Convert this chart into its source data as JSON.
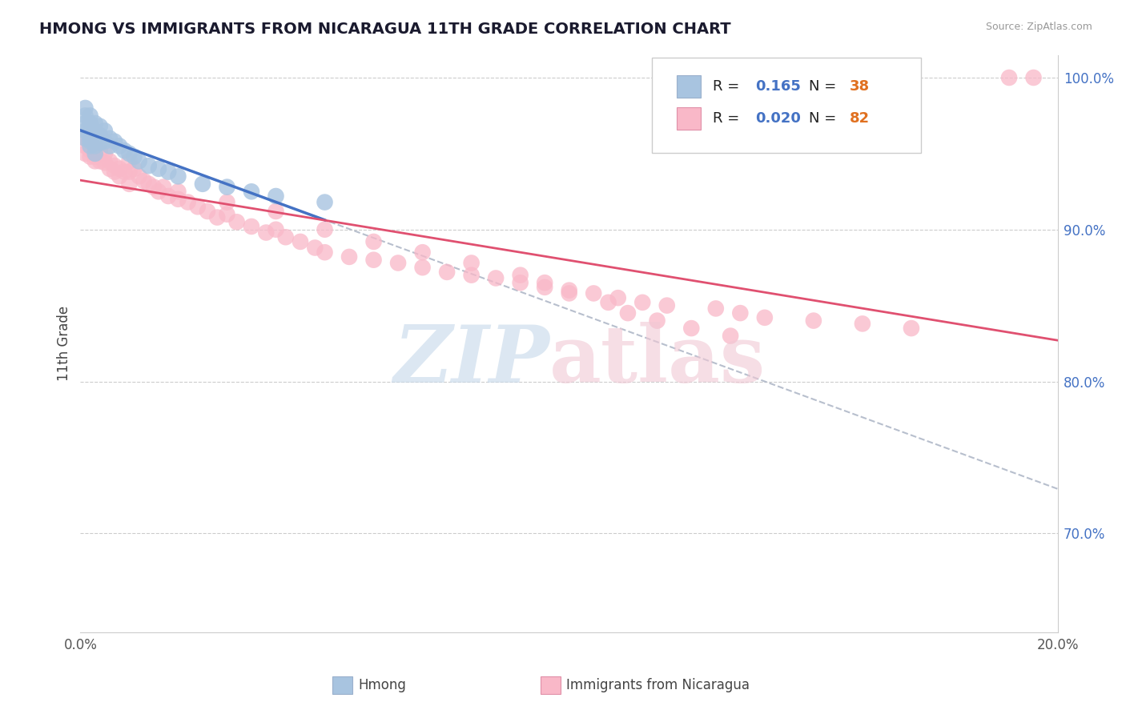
{
  "title": "HMONG VS IMMIGRANTS FROM NICARAGUA 11TH GRADE CORRELATION CHART",
  "source": "Source: ZipAtlas.com",
  "ylabel": "11th Grade",
  "legend_label1": "Hmong",
  "legend_label2": "Immigrants from Nicaragua",
  "R1": 0.165,
  "N1": 38,
  "R2": 0.02,
  "N2": 82,
  "xlim": [
    0.0,
    0.2
  ],
  "ylim": [
    0.635,
    1.015
  ],
  "yticks_right": [
    0.7,
    0.8,
    0.9,
    1.0
  ],
  "ytick_right_labels": [
    "70.0%",
    "80.0%",
    "90.0%",
    "100.0%"
  ],
  "color_hmong": "#a8c4e0",
  "color_nicaragua": "#f9b8c8",
  "color_hmong_line": "#4472c4",
  "color_nicaragua_line": "#e05070",
  "color_dashed": "#b0b8c8",
  "hmong_x": [
    0.001,
    0.001,
    0.001,
    0.001,
    0.001,
    0.002,
    0.002,
    0.002,
    0.002,
    0.002,
    0.002,
    0.003,
    0.003,
    0.003,
    0.003,
    0.003,
    0.004,
    0.004,
    0.004,
    0.005,
    0.005,
    0.006,
    0.006,
    0.007,
    0.008,
    0.009,
    0.01,
    0.011,
    0.012,
    0.014,
    0.016,
    0.018,
    0.02,
    0.025,
    0.03,
    0.035,
    0.04,
    0.05
  ],
  "hmong_y": [
    0.98,
    0.975,
    0.97,
    0.965,
    0.96,
    0.975,
    0.97,
    0.965,
    0.96,
    0.958,
    0.955,
    0.97,
    0.965,
    0.96,
    0.955,
    0.95,
    0.968,
    0.962,
    0.957,
    0.965,
    0.958,
    0.96,
    0.955,
    0.958,
    0.955,
    0.952,
    0.95,
    0.948,
    0.945,
    0.942,
    0.94,
    0.938,
    0.935,
    0.93,
    0.928,
    0.925,
    0.922,
    0.918
  ],
  "nicaragua_x": [
    0.001,
    0.001,
    0.001,
    0.002,
    0.002,
    0.002,
    0.003,
    0.003,
    0.003,
    0.004,
    0.004,
    0.005,
    0.005,
    0.006,
    0.006,
    0.007,
    0.007,
    0.008,
    0.008,
    0.009,
    0.01,
    0.01,
    0.011,
    0.012,
    0.013,
    0.014,
    0.015,
    0.016,
    0.017,
    0.018,
    0.02,
    0.022,
    0.024,
    0.026,
    0.028,
    0.03,
    0.032,
    0.035,
    0.038,
    0.04,
    0.042,
    0.045,
    0.048,
    0.05,
    0.055,
    0.06,
    0.065,
    0.07,
    0.075,
    0.08,
    0.085,
    0.09,
    0.095,
    0.1,
    0.105,
    0.11,
    0.115,
    0.12,
    0.13,
    0.135,
    0.14,
    0.15,
    0.16,
    0.17,
    0.01,
    0.02,
    0.03,
    0.04,
    0.05,
    0.06,
    0.07,
    0.08,
    0.09,
    0.095,
    0.1,
    0.108,
    0.112,
    0.118,
    0.125,
    0.133,
    0.19,
    0.195
  ],
  "nicaragua_y": [
    0.96,
    0.955,
    0.95,
    0.958,
    0.952,
    0.948,
    0.955,
    0.948,
    0.945,
    0.952,
    0.945,
    0.95,
    0.944,
    0.945,
    0.94,
    0.942,
    0.938,
    0.94,
    0.935,
    0.938,
    0.945,
    0.938,
    0.94,
    0.935,
    0.932,
    0.93,
    0.928,
    0.925,
    0.928,
    0.922,
    0.92,
    0.918,
    0.915,
    0.912,
    0.908,
    0.91,
    0.905,
    0.902,
    0.898,
    0.9,
    0.895,
    0.892,
    0.888,
    0.885,
    0.882,
    0.88,
    0.878,
    0.875,
    0.872,
    0.87,
    0.868,
    0.865,
    0.862,
    0.86,
    0.858,
    0.855,
    0.852,
    0.85,
    0.848,
    0.845,
    0.842,
    0.84,
    0.838,
    0.835,
    0.93,
    0.925,
    0.918,
    0.912,
    0.9,
    0.892,
    0.885,
    0.878,
    0.87,
    0.865,
    0.858,
    0.852,
    0.845,
    0.84,
    0.835,
    0.83,
    1.0,
    1.0
  ]
}
